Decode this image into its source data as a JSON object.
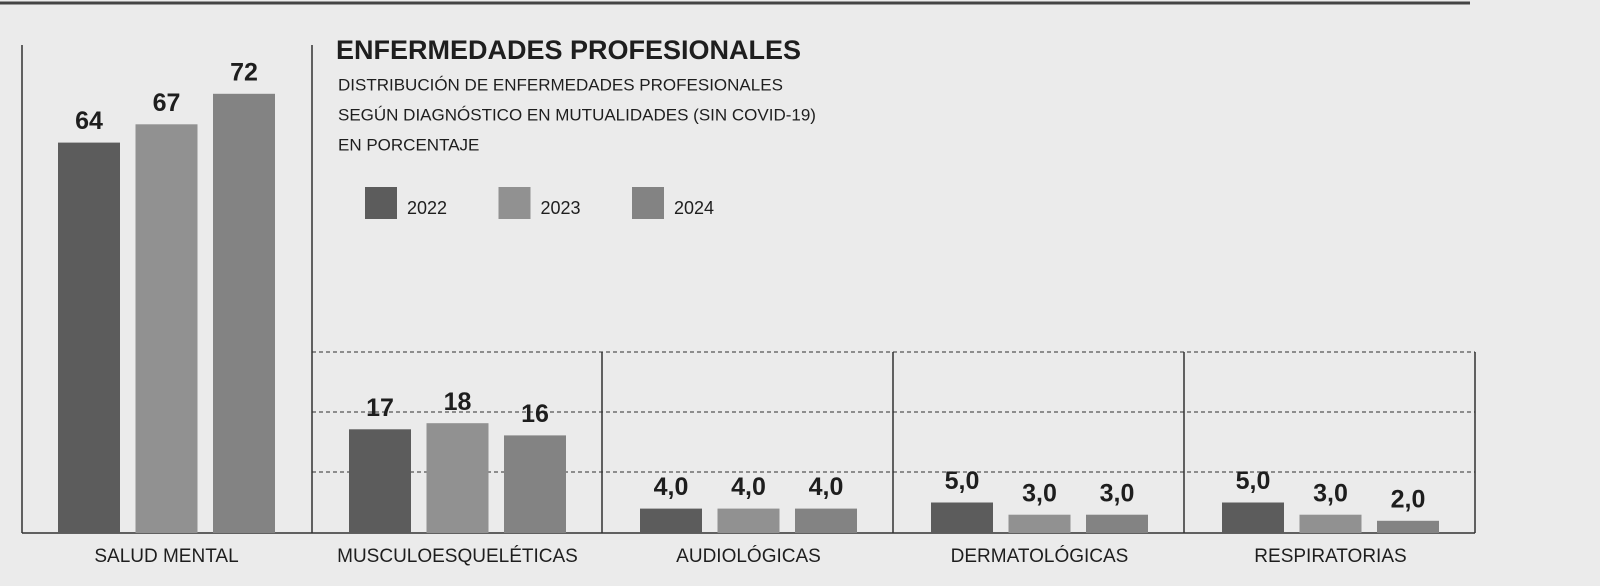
{
  "chart_data": {
    "type": "bar",
    "title": "ENFERMEDADES PROFESIONALES",
    "subtitle": [
      "DISTRIBUCIÓN DE ENFERMEDADES PROFESIONALES",
      "SEGÚN DIAGNÓSTICO EN MUTUALIDADES (SIN COVID-19)",
      "EN PORCENTAJE"
    ],
    "categories": [
      "SALUD MENTAL",
      "MUSCULOESQUELÉTICAS",
      "AUDIOLÓGICAS",
      "DERMATOLÓGICAS",
      "RESPIRATORIAS"
    ],
    "series": [
      {
        "name": "2022",
        "color": "#5c5c5c",
        "values": [
          64,
          17,
          4,
          5,
          5
        ],
        "value_labels": [
          "64",
          "17",
          "4,0",
          "5,0",
          "5,0"
        ]
      },
      {
        "name": "2023",
        "color": "#919191",
        "values": [
          67,
          18,
          4,
          3,
          3
        ],
        "value_labels": [
          "67",
          "18",
          "4,0",
          "3,0",
          "3,0"
        ]
      },
      {
        "name": "2024",
        "color": "#838383",
        "values": [
          72,
          16,
          4,
          3,
          2
        ],
        "value_labels": [
          "72",
          "16",
          "4,0",
          "3,0",
          "2,0"
        ]
      }
    ]
  }
}
